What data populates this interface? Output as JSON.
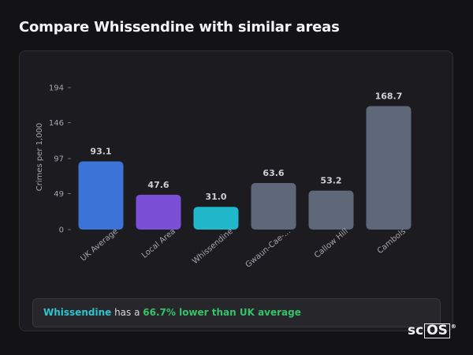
{
  "page": {
    "title": "Compare Whissendine with similar areas"
  },
  "chart_data": {
    "type": "bar",
    "title": "",
    "ylabel": "Crimes per 1,000",
    "xlabel": "",
    "categories": [
      "UK Average",
      "Local Area",
      "Whissendine",
      "Gwaun-Cae-...",
      "Callow Hill",
      "Cambols"
    ],
    "values": [
      93.1,
      47.6,
      31.0,
      63.6,
      53.2,
      168.7
    ],
    "value_labels": [
      "93.1",
      "47.6",
      "31.0",
      "63.6",
      "53.2",
      "168.7"
    ],
    "bar_colors": [
      "#3b74d6",
      "#7b4fd6",
      "#22b8cc",
      "#5f6878",
      "#5f6878",
      "#5f6878"
    ],
    "yticks": [
      0,
      49,
      97,
      146,
      194
    ],
    "ylim": [
      0,
      194
    ],
    "grid": false,
    "legend": "none"
  },
  "summary": {
    "area": "Whissendine",
    "middle": " has a ",
    "stat": "66.7% lower than UK average"
  },
  "logo": {
    "prefix": "sc",
    "boxed": "OS",
    "mark": "®"
  },
  "colors": {
    "background": "#131316",
    "card": "#1c1c20",
    "area_highlight": "#2ec4cf",
    "stat_highlight": "#35c36a"
  }
}
